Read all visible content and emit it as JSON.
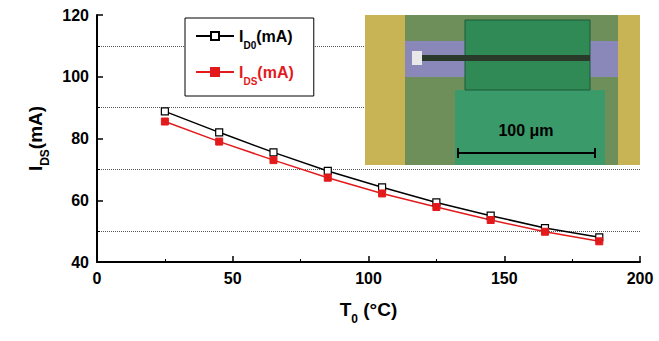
{
  "chart_data": {
    "type": "line",
    "xlabel": "T0 (°C)",
    "ylabel": "IDS(mA)",
    "x": [
      25,
      45,
      65,
      85,
      105,
      125,
      145,
      165,
      185
    ],
    "series": [
      {
        "name": "ID0(mA)",
        "color": "#000000",
        "marker": "square-open",
        "values": [
          88.8,
          82.0,
          75.5,
          69.5,
          64.2,
          59.3,
          55.0,
          51.0,
          48.0
        ]
      },
      {
        "name": "IDS(mA)",
        "color": "#e31a1c",
        "marker": "square",
        "values": [
          85.5,
          79.0,
          73.0,
          67.3,
          62.2,
          57.8,
          53.6,
          49.8,
          46.7
        ]
      }
    ],
    "xlim": [
      0,
      200
    ],
    "xticks": [
      0,
      50,
      100,
      150,
      200
    ],
    "ylim": [
      40,
      120
    ],
    "yticks": [
      40,
      60,
      80,
      100,
      120
    ],
    "grid": true,
    "legend": "top",
    "annotations": [
      "100 μm"
    ]
  }
}
